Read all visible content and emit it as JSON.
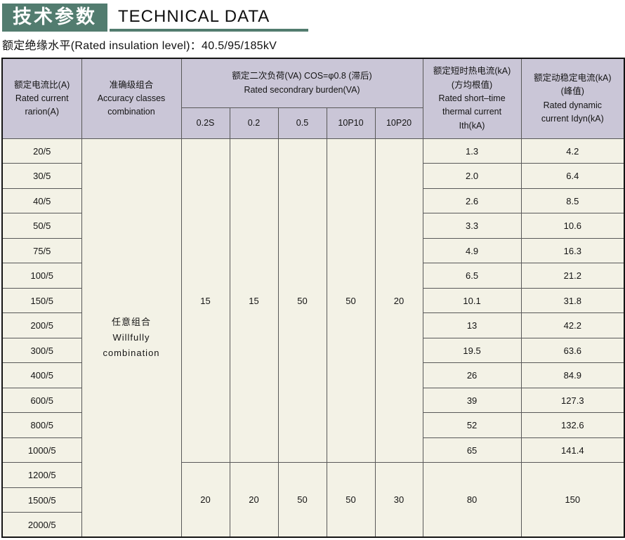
{
  "header": {
    "badge_cn": "技术参数",
    "title_en": "TECHNICAL DATA",
    "subtitle": "额定绝缘水平(Rated insulation level)：40.5/95/185kV"
  },
  "colors": {
    "accent_green": "#527c6f",
    "table_header_bg": "#cac6d7",
    "ratio_column_bg": "#dee9e4",
    "body_cell_bg": "#f3f2e6",
    "outer_border": "#141414",
    "inner_border": "#585858"
  },
  "table": {
    "headers": {
      "ratio": "额定电流比(A)\nRated current\nrarion(A)",
      "accuracy": "准确级组合\nAccuracy classes\ncombination",
      "burden_group": "额定二次负荷(VA) COS=φ0.8 (滞后)\nRated secondrary burden(VA)",
      "burden_cols": [
        "0.2S",
        "0.2",
        "0.5",
        "10P10",
        "10P20"
      ],
      "ith": "额定短时热电流(kA)\n(方均根值)\nRated short–time\nthermal current\nIth(kA)",
      "idyn": "额定动稳定电流(kA)\n(峰值)\nRated dynamic\ncurrent Idyn(kA)"
    },
    "body": {
      "ratios": [
        "20/5",
        "30/5",
        "40/5",
        "50/5",
        "75/5",
        "100/5",
        "150/5",
        "200/5",
        "300/5",
        "400/5",
        "600/5",
        "800/5",
        "1000/5",
        "1200/5",
        "1500/5",
        "2000/5"
      ],
      "accuracy_cell": "任意组合\nWillfully\ncombination",
      "burden_span1": [
        "15",
        "15",
        "50",
        "50",
        "20"
      ],
      "burden_span2": [
        "20",
        "20",
        "50",
        "50",
        "30"
      ],
      "ith_values": [
        "1.3",
        "2.0",
        "2.6",
        "3.3",
        "4.9",
        "6.5",
        "10.1",
        "13",
        "19.5",
        "26",
        "39",
        "52",
        "65"
      ],
      "ith_span": "80",
      "idyn_values": [
        "4.2",
        "6.4",
        "8.5",
        "10.6",
        "16.3",
        "21.2",
        "31.8",
        "42.2",
        "63.6",
        "84.9",
        "127.3",
        "132.6",
        "141.4"
      ],
      "idyn_span": "150"
    }
  }
}
